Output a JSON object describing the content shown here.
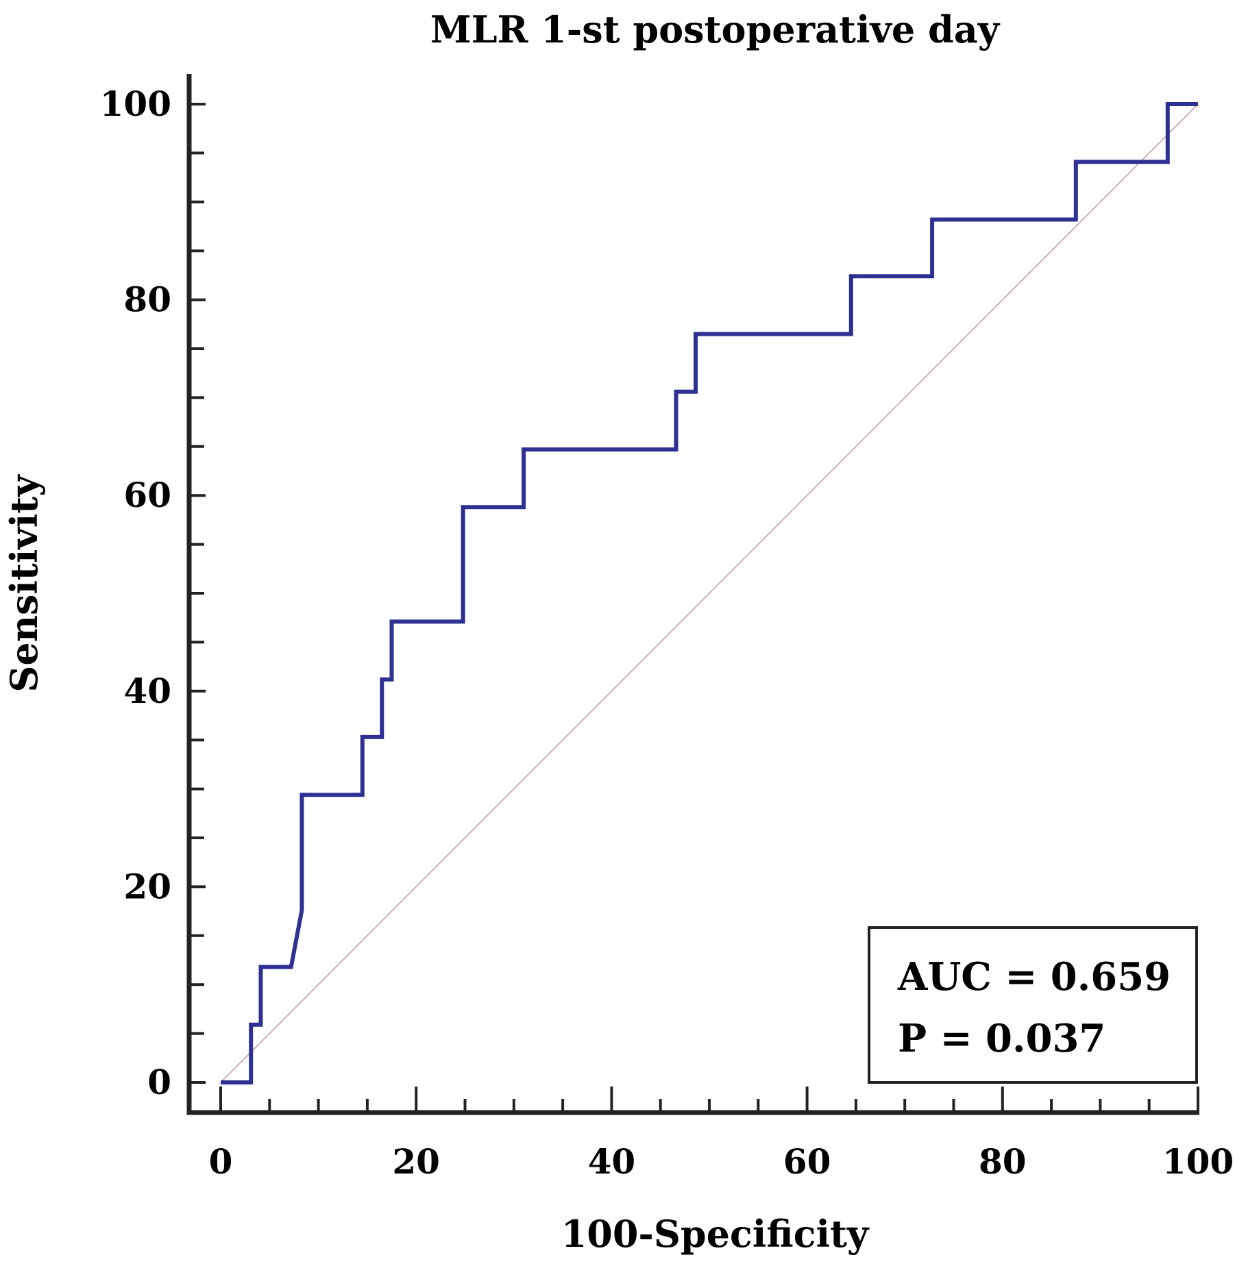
{
  "chart_data": {
    "type": "line",
    "title": "MLR 1-st postoperative day",
    "xlabel": "100-Specificity",
    "ylabel": "Sensitivity",
    "xlim": [
      0,
      100
    ],
    "ylim": [
      0,
      100
    ],
    "x_ticks": [
      0,
      20,
      40,
      60,
      80,
      100
    ],
    "y_ticks": [
      0,
      20,
      40,
      60,
      80,
      100
    ],
    "x_ticks_minor": [
      5,
      10,
      15,
      25,
      30,
      35,
      45,
      50,
      55,
      65,
      70,
      75,
      85,
      90,
      95
    ],
    "y_ticks_minor": [
      5,
      10,
      15,
      25,
      30,
      35,
      45,
      50,
      55,
      65,
      70,
      75,
      85,
      90,
      95
    ],
    "grid": false,
    "legend": "none",
    "series": [
      {
        "name": "ROC curve",
        "color": "#2e3192",
        "points": [
          [
            0,
            0
          ],
          [
            3.1,
            0
          ],
          [
            3.1,
            5.9
          ],
          [
            4.1,
            5.9
          ],
          [
            4.1,
            11.8
          ],
          [
            7.2,
            11.8
          ],
          [
            8.3,
            17.6
          ],
          [
            8.3,
            29.4
          ],
          [
            14.5,
            29.4
          ],
          [
            14.5,
            35.3
          ],
          [
            16.5,
            35.3
          ],
          [
            16.5,
            41.2
          ],
          [
            17.5,
            41.2
          ],
          [
            17.5,
            47.1
          ],
          [
            24.8,
            47.1
          ],
          [
            24.8,
            58.8
          ],
          [
            31.0,
            58.8
          ],
          [
            31.0,
            64.7
          ],
          [
            46.6,
            64.7
          ],
          [
            46.6,
            70.6
          ],
          [
            48.6,
            70.6
          ],
          [
            48.6,
            76.5
          ],
          [
            64.5,
            76.5
          ],
          [
            64.5,
            82.4
          ],
          [
            72.8,
            82.4
          ],
          [
            72.8,
            88.2
          ],
          [
            87.5,
            88.2
          ],
          [
            87.5,
            94.1
          ],
          [
            96.9,
            94.1
          ],
          [
            96.9,
            100
          ],
          [
            100,
            100
          ]
        ]
      },
      {
        "name": "Reference line",
        "color": "#c8a0a8",
        "points": [
          [
            0,
            0
          ],
          [
            100,
            100
          ]
        ]
      }
    ],
    "annotations": {
      "auc": "AUC = 0.659",
      "p_value": "P = 0.037"
    }
  }
}
